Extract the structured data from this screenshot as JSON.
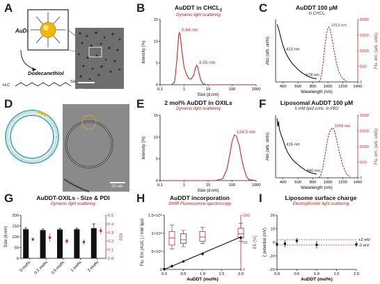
{
  "panels": {
    "A": {
      "letter": "A",
      "molecule_label": "AuDDT",
      "thiol_label": "Dodecanethiol",
      "formula_left": "H₃C",
      "formula_right": "SH",
      "scale_bar": "10 nm"
    },
    "B": {
      "letter": "B",
      "title": "AuDDT in CHCL",
      "title_sub": "3",
      "subtitle": "Dynamic light scattering"
    },
    "C": {
      "letter": "C",
      "title": "AuDDT 100 μM",
      "subtitle": "in CHCl₃"
    },
    "D": {
      "letter": "D",
      "scale_bar": "20 nm"
    },
    "E": {
      "letter": "E",
      "title": "2 mol% AuDDT in OXILs",
      "subtitle": "Dynamic light scattering"
    },
    "F": {
      "letter": "F",
      "title": "Liposomal AuDDT 100 μM",
      "subtitle": "5 mM lipid conc. in PBS"
    },
    "G": {
      "letter": "G",
      "title": "AuDDT-OXILs - Size & PDI",
      "subtitle": "Dynamic light scattering"
    },
    "H": {
      "letter": "H",
      "title": "AuDDT incorporation",
      "subtitle": "SWIR Fluorescence spectroscopy"
    },
    "I": {
      "letter": "I",
      "title": "Liposome surface charge",
      "subtitle": "Electrophoretic light scattering"
    }
  },
  "chart_data": [
    {
      "id": "B",
      "type": "line",
      "xscale": "log",
      "xlim": [
        0.1,
        1000
      ],
      "ylim": [
        0,
        15
      ],
      "xlabel": "Size (d.nm)",
      "ylabel": "Intensity (%)",
      "xticks": [
        "0.1",
        "1",
        "10",
        "100",
        "1000"
      ],
      "yticks": [
        "0",
        "5",
        "10",
        "15"
      ],
      "color": "#c62828",
      "x": [
        0.3,
        0.4,
        0.5,
        0.6,
        0.64,
        0.7,
        0.8,
        1.0,
        1.3,
        1.6,
        2.0,
        2.5,
        3.0,
        3.35,
        3.7,
        4.2,
        5.0,
        6.0,
        8.0,
        12,
        20,
        100,
        1000
      ],
      "y": [
        0,
        0.6,
        5.5,
        11.5,
        12.0,
        11.2,
        8.0,
        4.0,
        2.2,
        1.4,
        1.3,
        2.2,
        3.9,
        4.5,
        4.0,
        2.6,
        1.0,
        0.3,
        0,
        0,
        0,
        0,
        0
      ],
      "annotations": [
        {
          "x": 0.64,
          "y": 12.0,
          "text": "0.64 nm"
        },
        {
          "x": 3.35,
          "y": 4.5,
          "text": "3.35 nm"
        }
      ]
    },
    {
      "id": "C",
      "type": "line",
      "xlim": [
        300,
        1400
      ],
      "ylim": [
        0,
        1
      ],
      "y2lim": [
        0,
        2000
      ],
      "xlabel": "Wavelength (nm)",
      "ylabel": "Abs (arb. units)",
      "y2label": "Flu. em. (arb. units)",
      "xticks": [
        "400",
        "600",
        "800",
        "1000",
        "1200",
        "1400"
      ],
      "y2ticks": [
        "0",
        "500",
        "1000",
        "1500",
        "2000"
      ],
      "series": [
        {
          "axis": "left",
          "style": "solid",
          "color": "#111111",
          "x": [
            320,
            340,
            360,
            380,
            400,
            413,
            430,
            460,
            500,
            550,
            600,
            650,
            678,
            700,
            750,
            800,
            850
          ],
          "y": [
            0.92,
            0.85,
            0.76,
            0.66,
            0.58,
            0.54,
            0.48,
            0.41,
            0.33,
            0.26,
            0.2,
            0.15,
            0.13,
            0.11,
            0.08,
            0.06,
            0.05
          ]
        },
        {
          "axis": "right",
          "style": "dashed",
          "color": "#c62828",
          "x": [
            880,
            900,
            920,
            940,
            960,
            980,
            1000,
            1013,
            1030,
            1050,
            1080,
            1110,
            1150,
            1200,
            1250
          ],
          "y": [
            0,
            80,
            300,
            700,
            1150,
            1520,
            1720,
            1760,
            1680,
            1450,
            1050,
            650,
            300,
            100,
            20
          ]
        }
      ],
      "annotations": [
        {
          "x": 413,
          "y": 0.54,
          "text": "413 nm",
          "axis": "left"
        },
        {
          "x": 678,
          "y": 0.13,
          "text": "678 nm",
          "axis": "left"
        },
        {
          "x": 1013,
          "y": 1760,
          "text": "1013 nm",
          "axis": "right"
        }
      ]
    },
    {
      "id": "E",
      "type": "line",
      "xscale": "log",
      "xlim": [
        0.1,
        1000
      ],
      "ylim": [
        0,
        15
      ],
      "xlabel": "Size (d.nm)",
      "ylabel": "Intensity (%)",
      "xticks": [
        "0.1",
        "1",
        "10",
        "100",
        "1000"
      ],
      "yticks": [
        "0",
        "5",
        "10",
        "15"
      ],
      "color": "#c62828",
      "x": [
        0.1,
        20,
        40,
        60,
        80,
        100,
        124.5,
        150,
        200,
        250,
        300,
        400,
        500,
        1000
      ],
      "y": [
        0,
        0,
        0.4,
        2.5,
        6.0,
        9.0,
        10.5,
        10.2,
        8.0,
        5.0,
        3.0,
        0.9,
        0.2,
        0
      ],
      "annotations": [
        {
          "x": 124.5,
          "y": 10.5,
          "text": "124.5 nm"
        }
      ]
    },
    {
      "id": "F",
      "type": "line",
      "xlim": [
        300,
        1400
      ],
      "ylim": [
        0,
        1
      ],
      "y2lim": [
        0,
        2000
      ],
      "xlabel": "Wavelength (nm)",
      "ylabel": "Abs (arb. units)",
      "y2label": "Flu. em. (arb. units)",
      "xticks": [
        "400",
        "600",
        "800",
        "1000",
        "1200",
        "1400"
      ],
      "y2ticks": [
        "0",
        "500",
        "1000",
        "1500",
        "2000"
      ],
      "series": [
        {
          "axis": "left",
          "style": "solid",
          "color": "#111111",
          "x": [
            320,
            330,
            340,
            350,
            360,
            370,
            380,
            390,
            400,
            415,
            430,
            460,
            500,
            550,
            600,
            650,
            690,
            700,
            750,
            800,
            850
          ],
          "y": [
            0.95,
            0.82,
            0.9,
            0.78,
            0.74,
            0.7,
            0.66,
            0.64,
            0.6,
            0.55,
            0.49,
            0.41,
            0.33,
            0.26,
            0.21,
            0.16,
            0.13,
            0.12,
            0.09,
            0.07,
            0.06
          ]
        },
        {
          "axis": "right",
          "style": "dashed",
          "color": "#c62828",
          "x": [
            880,
            900,
            930,
            960,
            990,
            1020,
            1058,
            1080,
            1110,
            1150,
            1200,
            1250,
            1300
          ],
          "y": [
            0,
            60,
            300,
            700,
            1150,
            1450,
            1600,
            1560,
            1300,
            850,
            400,
            120,
            20
          ]
        }
      ],
      "annotations": [
        {
          "x": 415,
          "y": 0.55,
          "text": "415 nm",
          "axis": "left"
        },
        {
          "x": 690,
          "y": 0.13,
          "text": "690 nm",
          "axis": "left"
        },
        {
          "x": 1058,
          "y": 1600,
          "text": "1058 nm",
          "axis": "right"
        }
      ]
    },
    {
      "id": "G",
      "type": "bar",
      "categories": [
        "0 mol%",
        "0.2 mol%",
        "0.5 mol%",
        "1 mol%",
        "2 mol%"
      ],
      "ylabel": "Size (d.nm)",
      "y2label": "PDI",
      "ylim": [
        0,
        200
      ],
      "y2lim": [
        0,
        0.5
      ],
      "yticks": [
        "0",
        "50",
        "100",
        "150",
        "200"
      ],
      "y2ticks": [
        "0.0",
        "0.1",
        "0.2",
        "0.3",
        "0.4",
        "0.5"
      ],
      "series": [
        {
          "name": "Size",
          "color": "#111111",
          "values": [
            135,
            131,
            134,
            135,
            140
          ],
          "errors": [
            6,
            5,
            5,
            5,
            20
          ]
        },
        {
          "name": "PDI",
          "color": "#c62828",
          "values": [
            0.22,
            0.24,
            0.2,
            0.19,
            0.32
          ],
          "errors": [
            0.02,
            0.05,
            0.03,
            0.03,
            0.04
          ]
        }
      ]
    },
    {
      "id": "H",
      "type": "scatter",
      "xlim": [
        0,
        2
      ],
      "ylim": [
        0,
        1500000
      ],
      "y2lim": [
        0,
        100
      ],
      "xlabel": "AuDDT (mol%)",
      "ylabel": "Flu. Em (AUC ) / mM lipid",
      "y2label": "EE (%)",
      "xticks": [
        "0.0",
        "0.5",
        "1.0",
        "1.5",
        "2.0"
      ],
      "yticks": [
        "0",
        "5×10⁵",
        "1×10⁶",
        "1.5×10⁶"
      ],
      "y2ticks": [
        "0",
        "50",
        "100"
      ],
      "series": [
        {
          "name": "Flu. Em",
          "color": "#111111",
          "x": [
            0,
            0.2,
            0.5,
            1.0,
            2.0
          ],
          "y": [
            10000,
            90000,
            220000,
            430000,
            880000
          ],
          "errors": [
            10000,
            20000,
            30000,
            40000,
            60000
          ]
        },
        {
          "name": "EE",
          "color": "#c62828",
          "type": "box",
          "x": [
            0.2,
            0.5,
            1.0,
            2.0
          ],
          "median": [
            58,
            55,
            60,
            66
          ],
          "q1": [
            45,
            48,
            52,
            58
          ],
          "q3": [
            70,
            66,
            70,
            76
          ],
          "min": [
            38,
            42,
            48,
            52
          ],
          "max": [
            82,
            72,
            78,
            85
          ]
        }
      ]
    },
    {
      "id": "I",
      "type": "scatter",
      "xlim": [
        0,
        2
      ],
      "ylim": [
        -20,
        20
      ],
      "xlabel": "AuDDT (mol%)",
      "ylabel": "ζ potential (mV)",
      "xticks": [
        "0.0",
        "0.5",
        "1.0",
        "1.5",
        "2.0"
      ],
      "yticks": [
        "-20",
        "-10",
        "0",
        "10",
        "20"
      ],
      "x": [
        0,
        0.2,
        0.5,
        1.0,
        2.0
      ],
      "y": [
        -1.5,
        -1.0,
        1.2,
        -1.8,
        -1.5
      ],
      "errors": [
        1.5,
        2.5,
        2.0,
        2.8,
        2.0
      ],
      "reference_lines": [
        {
          "y": 2,
          "text": "+2 mV"
        },
        {
          "y": -2,
          "text": "-2 mV"
        }
      ]
    }
  ]
}
